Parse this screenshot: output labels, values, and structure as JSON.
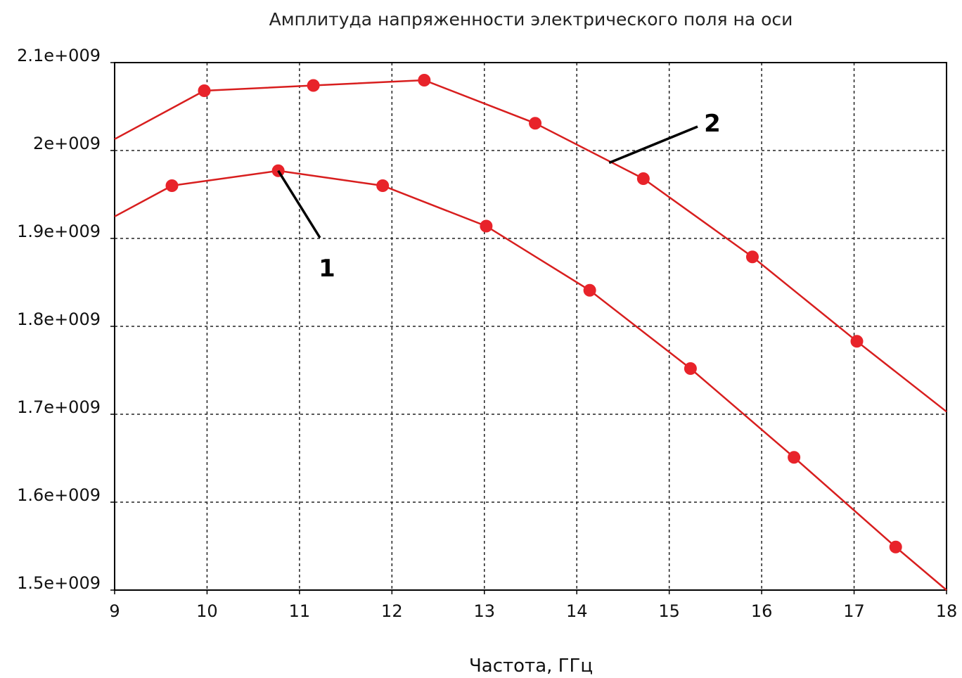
{
  "chart_data": {
    "type": "line",
    "title": "Амплитуда напряженности электрического поля на оси",
    "xlabel": "Частота, ГГц",
    "ylabel": "",
    "xlim": [
      9,
      18
    ],
    "ylim": [
      1500000000,
      2100000000
    ],
    "x_ticks": [
      9,
      10,
      11,
      12,
      13,
      14,
      15,
      16,
      17,
      18
    ],
    "x_tick_labels": [
      "9",
      "10",
      "11",
      "12",
      "13",
      "14",
      "15",
      "16",
      "17",
      "18"
    ],
    "y_ticks": [
      1500000000,
      1600000000,
      1700000000,
      1800000000,
      1900000000,
      2000000000,
      2100000000
    ],
    "y_tick_labels": [
      "1.5e+009",
      "1.6e+009",
      "1.7e+009",
      "1.8e+009",
      "1.9e+009",
      "2e+009",
      "2.1e+009"
    ],
    "grid": true,
    "grid_style": "dashed",
    "line_color": "#d81e1e",
    "marker_color": "#e8232a",
    "series": [
      {
        "name": "1",
        "points": [
          [
            9.0,
            1925000000
          ],
          [
            9.62,
            1960000000
          ],
          [
            10.77,
            1977000000
          ],
          [
            11.9,
            1960000000
          ],
          [
            13.02,
            1914000000
          ],
          [
            14.14,
            1841000000
          ],
          [
            15.23,
            1752000000
          ],
          [
            16.35,
            1651000000
          ],
          [
            17.45,
            1549000000
          ],
          [
            18.0,
            1500000000
          ]
        ],
        "markers": [
          false,
          true,
          true,
          true,
          true,
          true,
          true,
          true,
          true,
          false
        ]
      },
      {
        "name": "2",
        "points": [
          [
            9.0,
            2013000000
          ],
          [
            9.97,
            2068000000
          ],
          [
            11.15,
            2074000000
          ],
          [
            12.35,
            2080000000
          ],
          [
            13.55,
            2031000000
          ],
          [
            14.72,
            1968000000
          ],
          [
            15.9,
            1879000000
          ],
          [
            17.03,
            1783000000
          ],
          [
            18.0,
            1703000000
          ]
        ],
        "markers": [
          false,
          true,
          true,
          true,
          true,
          true,
          true,
          true,
          false
        ]
      }
    ],
    "annotations": [
      {
        "text": "1",
        "point_to": [
          10.77,
          1977000000
        ]
      },
      {
        "text": "2",
        "point_to": [
          14.35,
          1986000000
        ]
      }
    ]
  }
}
